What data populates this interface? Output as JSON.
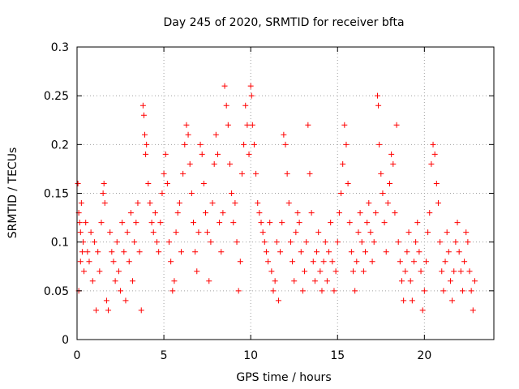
{
  "chart_data": {
    "type": "scatter",
    "title": "Day 245 of 2020, SRMTID for receiver bfta",
    "xlabel": "GPS time / hours",
    "ylabel": "SRMTID / TECUs",
    "xlim": [
      0,
      24
    ],
    "ylim": [
      0,
      0.3
    ],
    "grid": true,
    "marker": "plus",
    "marker_color": "#ff0000",
    "x_ticks": [
      {
        "value": 0,
        "label": "0"
      },
      {
        "value": 5,
        "label": "5"
      },
      {
        "value": 10,
        "label": "10"
      },
      {
        "value": 15,
        "label": "15"
      },
      {
        "value": 20,
        "label": "20"
      }
    ],
    "y_ticks": [
      {
        "value": 0,
        "label": "0"
      },
      {
        "value": 0.05,
        "label": "0.05"
      },
      {
        "value": 0.1,
        "label": "0.1"
      },
      {
        "value": 0.15,
        "label": "0.15"
      },
      {
        "value": 0.2,
        "label": "0.2"
      },
      {
        "value": 0.25,
        "label": "0.25"
      },
      {
        "value": 0.3,
        "label": "0.3"
      }
    ],
    "series": [
      {
        "name": "SRMTID",
        "points": [
          [
            0.05,
            0.16
          ],
          [
            0.1,
            0.13
          ],
          [
            0.15,
            0.12
          ],
          [
            0.2,
            0.11
          ],
          [
            0.25,
            0.14
          ],
          [
            0.3,
            0.09
          ],
          [
            0.1,
            0.05
          ],
          [
            0.2,
            0.08
          ],
          [
            0.35,
            0.1
          ],
          [
            0.4,
            0.07
          ],
          [
            0.5,
            0.12
          ],
          [
            0.6,
            0.09
          ],
          [
            0.7,
            0.08
          ],
          [
            0.8,
            0.11
          ],
          [
            0.9,
            0.06
          ],
          [
            1.0,
            0.1
          ],
          [
            1.1,
            0.03
          ],
          [
            1.2,
            0.09
          ],
          [
            1.3,
            0.07
          ],
          [
            1.4,
            0.12
          ],
          [
            1.5,
            0.15
          ],
          [
            1.55,
            0.16
          ],
          [
            1.6,
            0.14
          ],
          [
            1.7,
            0.04
          ],
          [
            1.8,
            0.03
          ],
          [
            1.9,
            0.11
          ],
          [
            2.0,
            0.09
          ],
          [
            2.1,
            0.08
          ],
          [
            2.2,
            0.06
          ],
          [
            2.3,
            0.1
          ],
          [
            2.4,
            0.07
          ],
          [
            2.5,
            0.05
          ],
          [
            2.6,
            0.12
          ],
          [
            2.7,
            0.09
          ],
          [
            2.8,
            0.04
          ],
          [
            2.9,
            0.11
          ],
          [
            3.0,
            0.08
          ],
          [
            3.1,
            0.13
          ],
          [
            3.2,
            0.06
          ],
          [
            3.3,
            0.1
          ],
          [
            3.4,
            0.12
          ],
          [
            3.5,
            0.14
          ],
          [
            3.6,
            0.09
          ],
          [
            3.7,
            0.03
          ],
          [
            3.8,
            0.24
          ],
          [
            3.85,
            0.23
          ],
          [
            3.9,
            0.21
          ],
          [
            3.95,
            0.19
          ],
          [
            4.0,
            0.2
          ],
          [
            4.1,
            0.16
          ],
          [
            4.2,
            0.14
          ],
          [
            4.3,
            0.12
          ],
          [
            4.4,
            0.11
          ],
          [
            4.5,
            0.13
          ],
          [
            4.6,
            0.1
          ],
          [
            4.7,
            0.09
          ],
          [
            4.8,
            0.12
          ],
          [
            4.9,
            0.15
          ],
          [
            5.0,
            0.17
          ],
          [
            5.1,
            0.19
          ],
          [
            5.2,
            0.16
          ],
          [
            5.3,
            0.1
          ],
          [
            5.4,
            0.08
          ],
          [
            5.5,
            0.05
          ],
          [
            5.6,
            0.06
          ],
          [
            5.7,
            0.11
          ],
          [
            5.8,
            0.13
          ],
          [
            5.9,
            0.14
          ],
          [
            6.0,
            0.09
          ],
          [
            6.1,
            0.17
          ],
          [
            6.2,
            0.2
          ],
          [
            6.3,
            0.22
          ],
          [
            6.4,
            0.21
          ],
          [
            6.5,
            0.18
          ],
          [
            6.6,
            0.15
          ],
          [
            6.7,
            0.12
          ],
          [
            6.8,
            0.09
          ],
          [
            6.9,
            0.07
          ],
          [
            7.0,
            0.11
          ],
          [
            7.1,
            0.2
          ],
          [
            7.2,
            0.19
          ],
          [
            7.3,
            0.16
          ],
          [
            7.4,
            0.13
          ],
          [
            7.5,
            0.11
          ],
          [
            7.6,
            0.06
          ],
          [
            7.7,
            0.1
          ],
          [
            7.8,
            0.14
          ],
          [
            7.9,
            0.18
          ],
          [
            8.0,
            0.21
          ],
          [
            8.1,
            0.19
          ],
          [
            8.2,
            0.12
          ],
          [
            8.3,
            0.09
          ],
          [
            8.4,
            0.13
          ],
          [
            8.5,
            0.26
          ],
          [
            8.6,
            0.24
          ],
          [
            8.7,
            0.22
          ],
          [
            8.8,
            0.18
          ],
          [
            8.9,
            0.15
          ],
          [
            9.0,
            0.12
          ],
          [
            9.1,
            0.14
          ],
          [
            9.2,
            0.1
          ],
          [
            9.3,
            0.05
          ],
          [
            9.4,
            0.08
          ],
          [
            9.5,
            0.17
          ],
          [
            9.6,
            0.2
          ],
          [
            9.7,
            0.24
          ],
          [
            9.8,
            0.22
          ],
          [
            9.9,
            0.19
          ],
          [
            10.0,
            0.26
          ],
          [
            10.05,
            0.25
          ],
          [
            10.1,
            0.22
          ],
          [
            10.2,
            0.2
          ],
          [
            10.3,
            0.17
          ],
          [
            10.4,
            0.14
          ],
          [
            10.5,
            0.13
          ],
          [
            10.6,
            0.12
          ],
          [
            10.7,
            0.11
          ],
          [
            10.8,
            0.1
          ],
          [
            10.9,
            0.09
          ],
          [
            11.0,
            0.08
          ],
          [
            11.1,
            0.12
          ],
          [
            11.2,
            0.07
          ],
          [
            11.3,
            0.05
          ],
          [
            11.4,
            0.06
          ],
          [
            11.5,
            0.1
          ],
          [
            11.6,
            0.04
          ],
          [
            11.7,
            0.09
          ],
          [
            11.8,
            0.12
          ],
          [
            11.9,
            0.21
          ],
          [
            12.0,
            0.2
          ],
          [
            12.1,
            0.17
          ],
          [
            12.2,
            0.14
          ],
          [
            12.3,
            0.1
          ],
          [
            12.4,
            0.08
          ],
          [
            12.5,
            0.06
          ],
          [
            12.6,
            0.11
          ],
          [
            12.7,
            0.13
          ],
          [
            12.8,
            0.12
          ],
          [
            12.9,
            0.09
          ],
          [
            13.0,
            0.05
          ],
          [
            13.1,
            0.07
          ],
          [
            13.2,
            0.1
          ],
          [
            13.3,
            0.22
          ],
          [
            13.4,
            0.17
          ],
          [
            13.5,
            0.13
          ],
          [
            13.6,
            0.08
          ],
          [
            13.7,
            0.06
          ],
          [
            13.8,
            0.09
          ],
          [
            13.9,
            0.11
          ],
          [
            14.0,
            0.07
          ],
          [
            14.1,
            0.05
          ],
          [
            14.2,
            0.08
          ],
          [
            14.3,
            0.1
          ],
          [
            14.4,
            0.06
          ],
          [
            14.5,
            0.09
          ],
          [
            14.6,
            0.12
          ],
          [
            14.7,
            0.08
          ],
          [
            14.8,
            0.05
          ],
          [
            14.9,
            0.07
          ],
          [
            15.0,
            0.1
          ],
          [
            15.1,
            0.13
          ],
          [
            15.2,
            0.15
          ],
          [
            15.3,
            0.18
          ],
          [
            15.4,
            0.22
          ],
          [
            15.5,
            0.2
          ],
          [
            15.6,
            0.16
          ],
          [
            15.7,
            0.12
          ],
          [
            15.8,
            0.09
          ],
          [
            15.9,
            0.07
          ],
          [
            16.0,
            0.05
          ],
          [
            16.1,
            0.08
          ],
          [
            16.2,
            0.11
          ],
          [
            16.3,
            0.13
          ],
          [
            16.4,
            0.1
          ],
          [
            16.5,
            0.07
          ],
          [
            16.6,
            0.09
          ],
          [
            16.7,
            0.12
          ],
          [
            16.8,
            0.14
          ],
          [
            16.9,
            0.11
          ],
          [
            17.0,
            0.08
          ],
          [
            17.1,
            0.1
          ],
          [
            17.2,
            0.13
          ],
          [
            17.3,
            0.25
          ],
          [
            17.35,
            0.24
          ],
          [
            17.4,
            0.2
          ],
          [
            17.5,
            0.17
          ],
          [
            17.6,
            0.15
          ],
          [
            17.7,
            0.12
          ],
          [
            17.8,
            0.09
          ],
          [
            17.9,
            0.14
          ],
          [
            18.0,
            0.16
          ],
          [
            18.1,
            0.19
          ],
          [
            18.2,
            0.18
          ],
          [
            18.3,
            0.13
          ],
          [
            18.4,
            0.22
          ],
          [
            18.5,
            0.1
          ],
          [
            18.6,
            0.08
          ],
          [
            18.7,
            0.06
          ],
          [
            18.8,
            0.04
          ],
          [
            18.9,
            0.07
          ],
          [
            19.0,
            0.09
          ],
          [
            19.1,
            0.11
          ],
          [
            19.2,
            0.06
          ],
          [
            19.3,
            0.04
          ],
          [
            19.4,
            0.08
          ],
          [
            19.5,
            0.1
          ],
          [
            19.6,
            0.12
          ],
          [
            19.7,
            0.09
          ],
          [
            19.8,
            0.07
          ],
          [
            19.9,
            0.03
          ],
          [
            20.0,
            0.05
          ],
          [
            20.1,
            0.08
          ],
          [
            20.2,
            0.11
          ],
          [
            20.3,
            0.13
          ],
          [
            20.4,
            0.18
          ],
          [
            20.5,
            0.2
          ],
          [
            20.6,
            0.19
          ],
          [
            20.7,
            0.16
          ],
          [
            20.8,
            0.14
          ],
          [
            20.9,
            0.1
          ],
          [
            21.0,
            0.07
          ],
          [
            21.1,
            0.05
          ],
          [
            21.2,
            0.08
          ],
          [
            21.3,
            0.11
          ],
          [
            21.4,
            0.09
          ],
          [
            21.5,
            0.06
          ],
          [
            21.6,
            0.04
          ],
          [
            21.7,
            0.07
          ],
          [
            21.8,
            0.1
          ],
          [
            21.9,
            0.12
          ],
          [
            22.0,
            0.09
          ],
          [
            22.1,
            0.07
          ],
          [
            22.2,
            0.05
          ],
          [
            22.3,
            0.08
          ],
          [
            22.4,
            0.11
          ],
          [
            22.5,
            0.1
          ],
          [
            22.6,
            0.07
          ],
          [
            22.7,
            0.05
          ],
          [
            22.8,
            0.03
          ],
          [
            22.9,
            0.06
          ]
        ]
      }
    ]
  }
}
